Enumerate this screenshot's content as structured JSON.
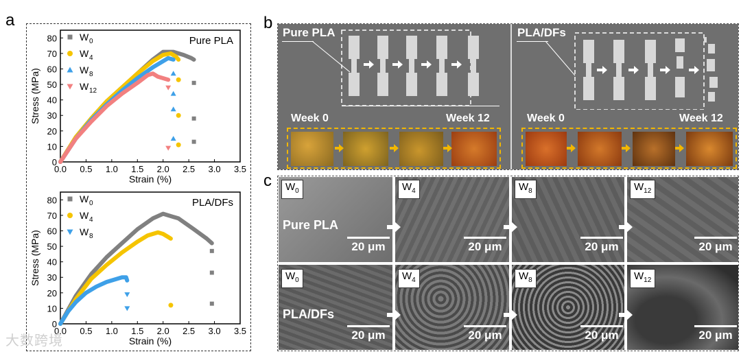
{
  "panel_labels": {
    "a": "a",
    "b": "b",
    "c": "c"
  },
  "panel_b": {
    "pure_label": "Pure PLA",
    "composite_label": "PLA/DFs",
    "week_start": "Week 0",
    "week_end": "Week 12"
  },
  "panel_c": {
    "rows": [
      "Pure PLA",
      "PLA/DFs"
    ],
    "tags": [
      "W",
      "W",
      "W",
      "W"
    ],
    "tag_subs": [
      "0",
      "4",
      "8",
      "12"
    ],
    "scale_bar": "20 μm"
  },
  "watermark": "大数跨境",
  "chart_data": [
    {
      "type": "scatter",
      "title": "Pure PLA",
      "xlabel": "Strain (%)",
      "ylabel": "Stress (MPa)",
      "xlim": [
        0,
        3.5
      ],
      "ylim": [
        0,
        85
      ],
      "xticks": [
        "0.0",
        "0.5",
        "1.0",
        "1.5",
        "2.0",
        "2.5",
        "3.0",
        "3.5"
      ],
      "yticks": [
        "0",
        "10",
        "20",
        "30",
        "40",
        "50",
        "60",
        "70",
        "80"
      ],
      "series": [
        {
          "name": "W",
          "sub": "0",
          "color": "#808080",
          "marker": "square",
          "curve": [
            [
              0,
              0
            ],
            [
              0.3,
              16
            ],
            [
              0.6,
              28
            ],
            [
              0.9,
              39
            ],
            [
              1.2,
              48
            ],
            [
              1.5,
              57
            ],
            [
              1.8,
              66
            ],
            [
              2.0,
              71
            ],
            [
              2.2,
              71
            ],
            [
              2.4,
              69
            ],
            [
              2.55,
              67
            ],
            [
              2.6,
              66
            ]
          ],
          "scatter": [
            [
              2.6,
              51
            ],
            [
              2.6,
              28
            ],
            [
              2.6,
              13
            ]
          ]
        },
        {
          "name": "W",
          "sub": "4",
          "color": "#f5c400",
          "marker": "circle",
          "curve": [
            [
              0,
              0
            ],
            [
              0.3,
              16
            ],
            [
              0.6,
              28
            ],
            [
              0.9,
              39
            ],
            [
              1.2,
              48
            ],
            [
              1.5,
              57
            ],
            [
              1.8,
              65
            ],
            [
              2.0,
              69
            ],
            [
              2.15,
              70
            ],
            [
              2.25,
              68
            ],
            [
              2.3,
              66
            ]
          ],
          "scatter": [
            [
              2.3,
              53
            ],
            [
              2.3,
              30
            ],
            [
              2.3,
              11
            ]
          ]
        },
        {
          "name": "W",
          "sub": "8",
          "color": "#3ea0e8",
          "marker": "triangle-up",
          "curve": [
            [
              0,
              0
            ],
            [
              0.3,
              15
            ],
            [
              0.6,
              27
            ],
            [
              0.9,
              37
            ],
            [
              1.2,
              46
            ],
            [
              1.5,
              54
            ],
            [
              1.8,
              61
            ],
            [
              2.0,
              65
            ],
            [
              2.1,
              67
            ],
            [
              2.2,
              66
            ]
          ],
          "scatter": [
            [
              2.2,
              57
            ],
            [
              2.2,
              44
            ],
            [
              2.2,
              34
            ],
            [
              2.2,
              15
            ]
          ]
        },
        {
          "name": "W",
          "sub": "12",
          "color": "#f28080",
          "marker": "triangle-down",
          "curve": [
            [
              0,
              0
            ],
            [
              0.3,
              15
            ],
            [
              0.6,
              26
            ],
            [
              0.9,
              36
            ],
            [
              1.2,
              44
            ],
            [
              1.5,
              51
            ],
            [
              1.7,
              56
            ],
            [
              1.8,
              57
            ],
            [
              1.9,
              55
            ],
            [
              2.0,
              54
            ],
            [
              2.1,
              53
            ]
          ],
          "scatter": [
            [
              2.1,
              48
            ],
            [
              2.1,
              9
            ]
          ]
        }
      ]
    },
    {
      "type": "scatter",
      "title": "PLA/DFs",
      "xlabel": "Strain (%)",
      "ylabel": "Stress (MPa)",
      "xlim": [
        0,
        3.5
      ],
      "ylim": [
        0,
        85
      ],
      "xticks": [
        "0.0",
        "0.5",
        "1.0",
        "1.5",
        "2.0",
        "2.5",
        "3.0",
        "3.5"
      ],
      "yticks": [
        "0",
        "10",
        "20",
        "30",
        "40",
        "50",
        "60",
        "70",
        "80"
      ],
      "series": [
        {
          "name": "W",
          "sub": "0",
          "color": "#808080",
          "marker": "square",
          "curve": [
            [
              0,
              0
            ],
            [
              0.3,
              18
            ],
            [
              0.6,
              32
            ],
            [
              0.9,
              43
            ],
            [
              1.2,
              52
            ],
            [
              1.5,
              61
            ],
            [
              1.8,
              68
            ],
            [
              2.0,
              71
            ],
            [
              2.3,
              68
            ],
            [
              2.6,
              61
            ],
            [
              2.85,
              55
            ],
            [
              2.95,
              52
            ]
          ],
          "scatter": [
            [
              2.95,
              47
            ],
            [
              2.95,
              33
            ],
            [
              2.95,
              13
            ]
          ]
        },
        {
          "name": "W",
          "sub": "4",
          "color": "#f5c400",
          "marker": "circle",
          "curve": [
            [
              0,
              0
            ],
            [
              0.3,
              16
            ],
            [
              0.6,
              29
            ],
            [
              0.9,
              38
            ],
            [
              1.2,
              46
            ],
            [
              1.5,
              53
            ],
            [
              1.7,
              57
            ],
            [
              1.9,
              59
            ],
            [
              2.0,
              58
            ],
            [
              2.1,
              56
            ],
            [
              2.15,
              55
            ]
          ],
          "scatter": [
            [
              2.15,
              12
            ]
          ]
        },
        {
          "name": "W",
          "sub": "8",
          "color": "#3ea0e8",
          "marker": "triangle-down",
          "curve": [
            [
              0,
              0
            ],
            [
              0.15,
              8
            ],
            [
              0.3,
              14
            ],
            [
              0.5,
              20
            ],
            [
              0.7,
              24
            ],
            [
              0.9,
              27
            ],
            [
              1.1,
              29
            ],
            [
              1.2,
              30
            ],
            [
              1.28,
              30
            ],
            [
              1.3,
              28
            ]
          ],
          "scatter": [
            [
              1.3,
              19
            ],
            [
              1.3,
              10
            ]
          ]
        }
      ]
    }
  ]
}
